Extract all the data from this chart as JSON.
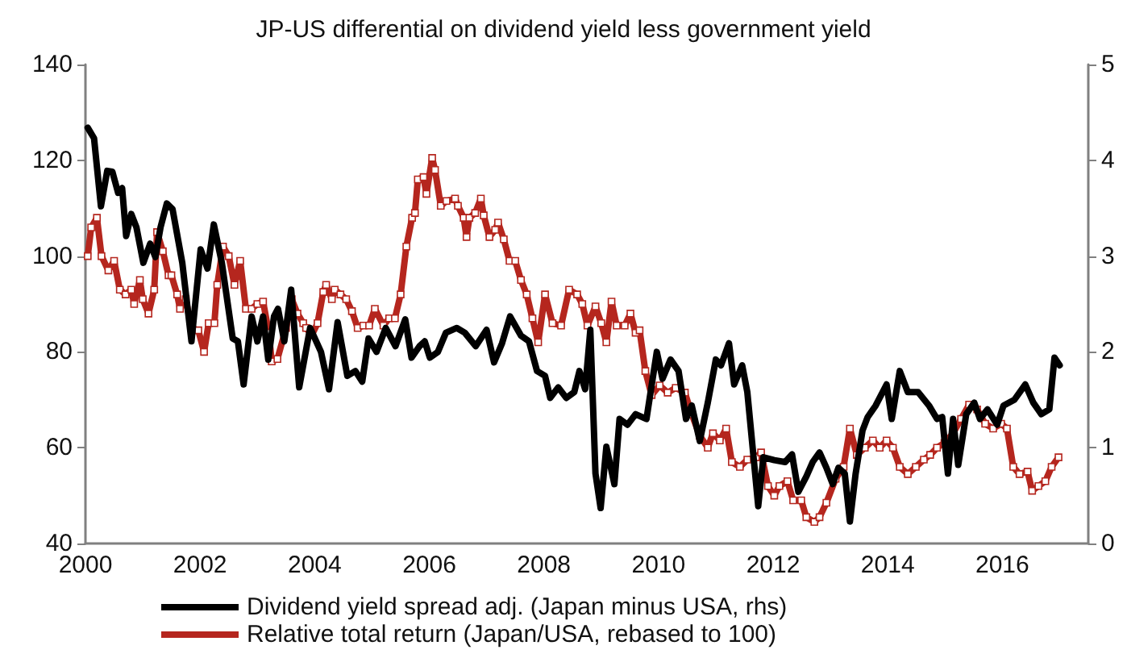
{
  "chart_data": {
    "type": "line",
    "title": "JP-US differential on dividend yield less government yield",
    "xlim": [
      2000,
      2017.5
    ],
    "xticks": [
      2000,
      2002,
      2004,
      2006,
      2008,
      2010,
      2012,
      2014,
      2016
    ],
    "ylim": [
      40,
      140
    ],
    "yticks": [
      40,
      60,
      80,
      100,
      120,
      140
    ],
    "y2lim": [
      0,
      5
    ],
    "y2ticks": [
      0,
      1,
      2,
      3,
      4,
      5
    ],
    "grid": false,
    "legend": "bottom",
    "series": [
      {
        "name": "Dividend yield spread adj. (Japan minus USA, rhs)",
        "color": "#000000",
        "axis": "y2",
        "marker": "none",
        "x": [
          2000.04,
          2000.15,
          2000.27,
          2000.38,
          2000.47,
          2000.57,
          2000.64,
          2000.71,
          2000.8,
          2000.89,
          2001.01,
          2001.13,
          2001.22,
          2001.31,
          2001.42,
          2001.52,
          2001.69,
          2001.85,
          2002.01,
          2002.13,
          2002.24,
          2002.38,
          2002.57,
          2002.66,
          2002.76,
          2002.9,
          2003.0,
          2003.1,
          2003.19,
          2003.29,
          2003.36,
          2003.47,
          2003.59,
          2003.73,
          2003.92,
          2004.11,
          2004.25,
          2004.4,
          2004.57,
          2004.71,
          2004.83,
          2004.94,
          2005.08,
          2005.24,
          2005.41,
          2005.58,
          2005.69,
          2005.83,
          2005.92,
          2006.01,
          2006.15,
          2006.29,
          2006.48,
          2006.62,
          2006.81,
          2007.0,
          2007.13,
          2007.27,
          2007.41,
          2007.6,
          2007.74,
          2007.88,
          2008.02,
          2008.11,
          2008.25,
          2008.39,
          2008.53,
          2008.62,
          2008.72,
          2008.81,
          2008.9,
          2008.99,
          2009.09,
          2009.23,
          2009.32,
          2009.46,
          2009.6,
          2009.79,
          2009.97,
          2010.07,
          2010.21,
          2010.35,
          2010.48,
          2010.58,
          2010.72,
          2010.86,
          2011.0,
          2011.09,
          2011.23,
          2011.32,
          2011.46,
          2011.55,
          2011.74,
          2011.83,
          2012.02,
          2012.21,
          2012.33,
          2012.44,
          2012.58,
          2012.69,
          2012.81,
          2012.93,
          2013.04,
          2013.14,
          2013.25,
          2013.34,
          2013.44,
          2013.56,
          2013.65,
          2013.79,
          2013.98,
          2014.07,
          2014.21,
          2014.35,
          2014.53,
          2014.72,
          2014.86,
          2014.95,
          2015.05,
          2015.14,
          2015.23,
          2015.37,
          2015.51,
          2015.61,
          2015.74,
          2015.91,
          2016.02,
          2016.21,
          2016.4,
          2016.54,
          2016.68,
          2016.82,
          2016.91,
          2017.0
        ],
        "values": [
          4.34,
          4.23,
          3.52,
          3.89,
          3.88,
          3.66,
          3.71,
          3.21,
          3.44,
          3.3,
          2.93,
          3.13,
          2.99,
          3.3,
          3.55,
          3.49,
          2.93,
          2.11,
          3.07,
          2.87,
          3.33,
          2.93,
          2.14,
          2.11,
          1.66,
          2.37,
          2.11,
          2.37,
          1.92,
          2.37,
          2.45,
          2.11,
          2.65,
          1.63,
          2.25,
          2.0,
          1.61,
          2.31,
          1.75,
          1.8,
          1.69,
          2.14,
          2.0,
          2.25,
          2.06,
          2.34,
          1.94,
          2.06,
          2.11,
          1.94,
          2.0,
          2.2,
          2.25,
          2.2,
          2.06,
          2.23,
          1.89,
          2.09,
          2.37,
          2.17,
          2.11,
          1.8,
          1.75,
          1.52,
          1.63,
          1.52,
          1.58,
          1.8,
          1.61,
          2.23,
          0.73,
          0.37,
          1.01,
          0.62,
          1.3,
          1.24,
          1.35,
          1.3,
          2.0,
          1.72,
          1.92,
          1.8,
          1.3,
          1.44,
          1.07,
          1.47,
          1.92,
          1.86,
          2.09,
          1.66,
          1.86,
          1.58,
          0.39,
          0.9,
          0.87,
          0.85,
          0.93,
          0.54,
          0.7,
          0.85,
          0.95,
          0.79,
          0.62,
          0.79,
          0.73,
          0.23,
          0.73,
          1.18,
          1.32,
          1.44,
          1.66,
          1.3,
          1.8,
          1.58,
          1.58,
          1.44,
          1.3,
          1.32,
          0.73,
          1.3,
          0.82,
          1.35,
          1.47,
          1.3,
          1.4,
          1.24,
          1.44,
          1.5,
          1.66,
          1.47,
          1.35,
          1.4,
          1.94,
          1.86
        ]
      },
      {
        "name": "Relative total return (Japan/USA, rebased to 100)",
        "color": "#b5261e",
        "marker": "square",
        "x": [
          2000.04,
          2000.1,
          2000.2,
          2000.28,
          2000.4,
          2000.5,
          2000.6,
          2000.7,
          2000.8,
          2000.85,
          2000.95,
          2001.0,
          2001.1,
          2001.2,
          2001.25,
          2001.35,
          2001.45,
          2001.5,
          2001.6,
          2001.65,
          2001.75,
          2001.85,
          2001.97,
          2002.07,
          2002.15,
          2002.25,
          2002.3,
          2002.4,
          2002.5,
          2002.6,
          2002.7,
          2002.8,
          2002.9,
          2003.0,
          2003.1,
          2003.2,
          2003.25,
          2003.35,
          2003.5,
          2003.6,
          2003.7,
          2003.8,
          2003.85,
          2003.95,
          2004.05,
          2004.15,
          2004.2,
          2004.3,
          2004.35,
          2004.45,
          2004.55,
          2004.65,
          2004.75,
          2004.85,
          2004.95,
          2005.05,
          2005.2,
          2005.3,
          2005.4,
          2005.5,
          2005.6,
          2005.7,
          2005.75,
          2005.8,
          2005.9,
          2005.95,
          2006.05,
          2006.1,
          2006.2,
          2006.3,
          2006.45,
          2006.5,
          2006.6,
          2006.65,
          2006.7,
          2006.8,
          2006.9,
          2006.95,
          2007.05,
          2007.15,
          2007.2,
          2007.3,
          2007.4,
          2007.5,
          2007.6,
          2007.7,
          2007.8,
          2007.9,
          2008.02,
          2008.15,
          2008.3,
          2008.44,
          2008.58,
          2008.67,
          2008.76,
          2008.9,
          2009.0,
          2009.09,
          2009.18,
          2009.27,
          2009.41,
          2009.51,
          2009.6,
          2009.67,
          2009.77,
          2009.88,
          2010.02,
          2010.16,
          2010.3,
          2010.46,
          2010.58,
          2010.72,
          2010.86,
          2010.95,
          2011.07,
          2011.18,
          2011.28,
          2011.42,
          2011.55,
          2011.7,
          2011.79,
          2011.91,
          2012.02,
          2012.11,
          2012.25,
          2012.35,
          2012.49,
          2012.58,
          2012.72,
          2012.81,
          2012.93,
          2013.09,
          2013.23,
          2013.34,
          2013.46,
          2013.6,
          2013.74,
          2013.86,
          2013.98,
          2014.09,
          2014.21,
          2014.35,
          2014.49,
          2014.63,
          2014.74,
          2014.86,
          2014.99,
          2015.14,
          2015.28,
          2015.42,
          2015.56,
          2015.7,
          2015.84,
          2015.98,
          2016.08,
          2016.19,
          2016.3,
          2016.44,
          2016.52,
          2016.63,
          2016.75,
          2016.86,
          2016.98
        ],
        "values": [
          100,
          106,
          108,
          100,
          97,
          99,
          93,
          92,
          93,
          90,
          95,
          91,
          88,
          93,
          105,
          101,
          96,
          96,
          92,
          89,
          91,
          85,
          84.5,
          80,
          86,
          86,
          94,
          102,
          100,
          94,
          99,
          89,
          89,
          90,
          90.5,
          84,
          78,
          78.5,
          85,
          91,
          88,
          86,
          85,
          83.5,
          86,
          92.5,
          94,
          91,
          93,
          92,
          91,
          88.5,
          85,
          85.5,
          85.5,
          89,
          85.5,
          87,
          87,
          92,
          102,
          108,
          109,
          116,
          116.5,
          113,
          120.5,
          118,
          110.5,
          111.5,
          112,
          110.5,
          108,
          104,
          108,
          109,
          112,
          108.5,
          104,
          105.5,
          107,
          103.5,
          99,
          99,
          95,
          92,
          87,
          82,
          92,
          86,
          85.5,
          93,
          92,
          90,
          85.5,
          89.5,
          86,
          82,
          90.5,
          85.5,
          85.5,
          88,
          84,
          84.5,
          76,
          71,
          73,
          71.5,
          72.5,
          71.5,
          67,
          62.5,
          60,
          63,
          61.5,
          64,
          57,
          56,
          57.5,
          58,
          59,
          52,
          50,
          52,
          53,
          49,
          49,
          45.5,
          44.5,
          45.5,
          48.5,
          53.5,
          56,
          64,
          58.5,
          60,
          61.5,
          60,
          61.5,
          60,
          56,
          54.5,
          56,
          57.5,
          58.5,
          60,
          61,
          63,
          66,
          69,
          68,
          65,
          64,
          65,
          64,
          56,
          54.5,
          55,
          51,
          52,
          53,
          56,
          58
        ]
      }
    ]
  }
}
